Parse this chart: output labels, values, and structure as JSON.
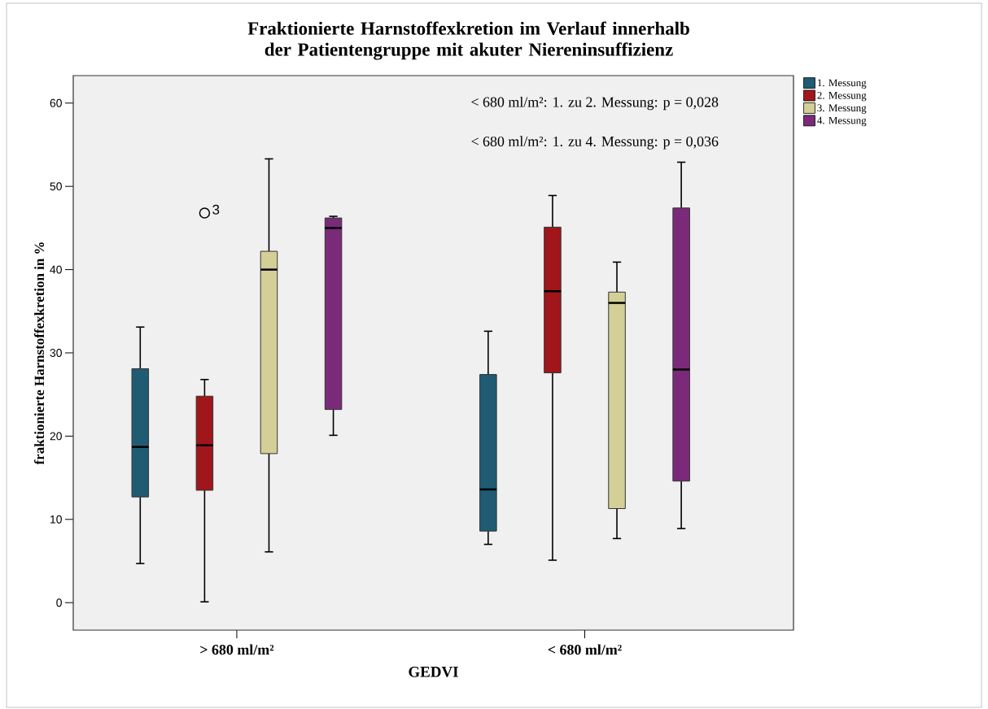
{
  "chart_data": {
    "type": "box",
    "title": "Fraktionierte Harnstoffexkretion im Verlauf innerhalb der Patientengruppe mit akuter Niereninsuffizienz",
    "xlabel": "GEDVI",
    "ylabel": "fraktionierte Harnstoffexkretion in %",
    "categories": [
      "> 680 ml/m²",
      "< 680 ml/m²"
    ],
    "series": [
      {
        "name": "1. Messung",
        "color": "#1f5c73",
        "boxes": [
          {
            "low": 4.7,
            "q1": 12.7,
            "median": 18.7,
            "q3": 28.1,
            "high": 33.1
          },
          {
            "low": 7.0,
            "q1": 8.6,
            "median": 13.6,
            "q3": 27.4,
            "high": 32.6
          }
        ]
      },
      {
        "name": "2. Messung",
        "color": "#a0161b",
        "boxes": [
          {
            "low": 0.1,
            "q1": 13.5,
            "median": 18.9,
            "q3": 24.8,
            "high": 26.8,
            "outliers": [
              46.8
            ]
          },
          {
            "low": 5.1,
            "q1": 27.6,
            "median": 37.4,
            "q3": 45.1,
            "high": 48.9
          }
        ]
      },
      {
        "name": "3. Messung",
        "color": "#d4cf96",
        "boxes": [
          {
            "low": 6.1,
            "q1": 17.9,
            "median": 40.0,
            "q3": 42.2,
            "high": 53.3
          },
          {
            "low": 7.7,
            "q1": 11.3,
            "median": 36.0,
            "q3": 37.3,
            "high": 40.9
          }
        ]
      },
      {
        "name": "4. Messung",
        "color": "#7b2a7a",
        "boxes": [
          {
            "low": 20.1,
            "q1": 23.2,
            "median": 45.0,
            "q3": 46.2,
            "high": 46.4
          },
          {
            "low": 8.9,
            "q1": 14.6,
            "median": 28.0,
            "q3": 47.4,
            "high": 52.9
          }
        ]
      }
    ],
    "ylim": [
      -3.3,
      63.3
    ],
    "yticks": [
      0,
      10,
      20,
      30,
      40,
      50,
      60
    ],
    "legend": "right",
    "annotations": [
      "< 680 ml/m²: 1. zu 2. Messung: p = 0,028",
      "< 680 ml/m²: 1. zu 4. Messung: p = 0,036",
      "3"
    ]
  }
}
